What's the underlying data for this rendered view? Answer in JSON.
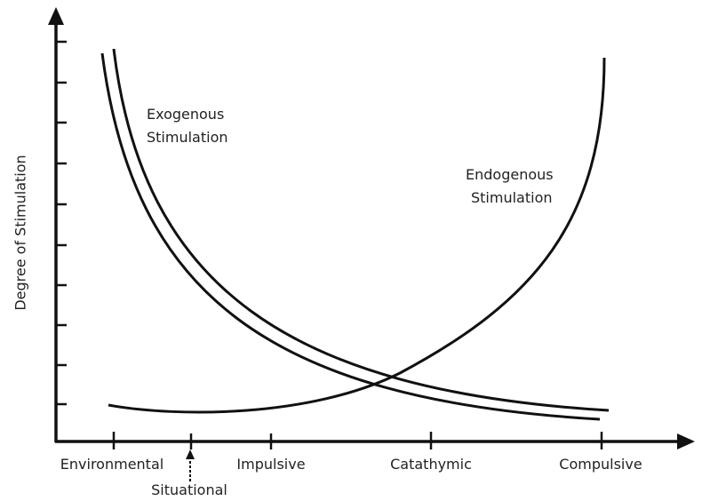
{
  "axes": {
    "y_label": "Degree of Stimulation"
  },
  "curves": [
    {
      "label": [
        "Exogenous",
        "Stimulation"
      ]
    },
    {
      "label": [
        "Endogenous",
        "Stimulation"
      ]
    }
  ],
  "x_labels": [
    "Environmental",
    "Situational",
    "Impulsive",
    "Catathymic",
    "Compulsive"
  ]
}
